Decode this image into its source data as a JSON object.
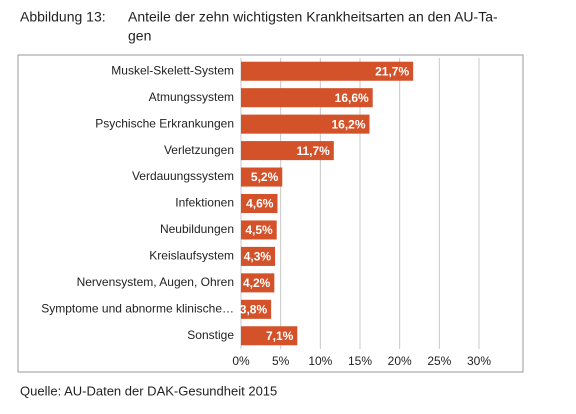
{
  "chart_data": {
    "type": "bar",
    "orientation": "horizontal",
    "title_label": "Abbildung 13:",
    "title": [
      "Anteile der zehn wichtigsten Krankheitsarten an den AU-Ta-",
      "gen"
    ],
    "source": "Quelle: AU-Daten der DAK-Gesundheit 2015",
    "categories": [
      "Muskel-Skelett-System",
      "Atmungssystem",
      "Psychische Erkrankungen",
      "Verletzungen",
      "Verdauungssystem",
      "Infektionen",
      "Neubildungen",
      "Kreislaufsystem",
      "Nervensystem, Augen, Ohren",
      "Symptome und abnorme klinische…",
      "Sonstige"
    ],
    "values": [
      21.7,
      16.6,
      16.2,
      11.7,
      5.2,
      4.6,
      4.5,
      4.3,
      4.2,
      3.8,
      7.1
    ],
    "value_labels": [
      "21,7%",
      "16,6%",
      "16,2%",
      "11,7%",
      "5,2%",
      "4,6%",
      "4,5%",
      "4,3%",
      "4,2%",
      "3,8%",
      "7,1%"
    ],
    "color": "#d3522a",
    "xlim": [
      0,
      30
    ],
    "xticks": [
      {
        "value": 0,
        "label": "0%"
      },
      {
        "value": 5,
        "label": "5%"
      },
      {
        "value": 10,
        "label": "10%"
      },
      {
        "value": 15,
        "label": "15%"
      },
      {
        "value": 20,
        "label": "20%"
      },
      {
        "value": 25,
        "label": "25%"
      },
      {
        "value": 30,
        "label": "30%"
      }
    ],
    "grid": true
  }
}
